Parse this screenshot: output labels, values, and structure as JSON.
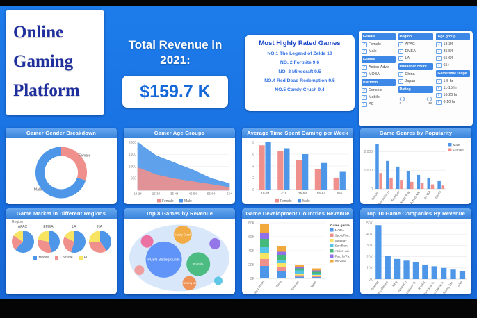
{
  "page": {
    "background": "#1b76e6",
    "card_header_color": "#3a84dc",
    "male_color": "#4e97e8",
    "female_color": "#f0908d"
  },
  "header": {
    "title_lines": [
      "Online",
      "Gaming",
      "Platform"
    ],
    "revenue_label": "Total Revenue in 2021:",
    "revenue_value": "$159.7 K",
    "rated": {
      "title": "Most Highly Rated Games",
      "items": [
        "NO.1 The Legend of Zelda 10",
        "NO. 2 Fortnite  9.6",
        "NO. 3 Minecraft 9.5",
        "NO.4 Red Dead Redemption 9.5",
        "NO.5 Candy Crush  9.4"
      ]
    }
  },
  "filters": {
    "columns": [
      {
        "sections": [
          {
            "title": "Gender",
            "items": [
              "Female",
              "Male"
            ]
          },
          {
            "title": "Games",
            "items": [
              "Action-Adve",
              "MOBA"
            ]
          },
          {
            "title": "Platform",
            "items": [
              "Console",
              "Mobile",
              "PC"
            ]
          }
        ]
      },
      {
        "sections": [
          {
            "title": "Region",
            "items": [
              "APAC",
              "EMEA",
              "LA"
            ]
          },
          {
            "title": "Publisher count",
            "items": [
              "China",
              "Japan"
            ]
          },
          {
            "title": "Rating",
            "slider": {
              "min": "0",
              "max": "10"
            }
          }
        ]
      },
      {
        "sections": [
          {
            "title": "Age group",
            "items": [
              "18-34",
              "35-54",
              "55-64",
              "65+"
            ]
          },
          {
            "title": "Game time range",
            "items": [
              "1-5 hr",
              "11-15 hr",
              "16-20 hr",
              "6-10 hr"
            ]
          }
        ]
      }
    ]
  },
  "chart_data": [
    {
      "id": "gender-breakdown",
      "type": "pie",
      "title": "Gamer Gender Breakdown",
      "labels": [
        "Female",
        "Male"
      ],
      "values": [
        30,
        70
      ],
      "colors": [
        "#f0908d",
        "#4e97e8"
      ],
      "donut": true
    },
    {
      "id": "age-groups",
      "type": "area",
      "title": "Gamer Age Groups",
      "categories": [
        "18-24",
        "25-34",
        "35-44",
        "45-54",
        "55-64",
        "65+"
      ],
      "series": [
        {
          "name": "Female",
          "color": "#f0908d",
          "values": [
            950,
            650,
            480,
            360,
            240,
            120
          ]
        },
        {
          "name": "Male",
          "color": "#4e97e8",
          "values": [
            2000,
            1450,
            1150,
            850,
            500,
            280
          ]
        }
      ],
      "ymax": 2000,
      "yticks": [
        500,
        1000,
        1500,
        2000
      ],
      "ytick_labels": [
        "500",
        "1000",
        "1500",
        "2000"
      ]
    },
    {
      "id": "time-spent",
      "type": "bar",
      "title": "Average Time Spent Gaming per Week",
      "categories": [
        "18-34",
        "<18",
        "35-54",
        "55-64",
        "65+"
      ],
      "series": [
        {
          "name": "Female",
          "color": "#f0908d",
          "values": [
            7.5,
            6.5,
            5,
            3.5,
            2
          ]
        },
        {
          "name": "Male",
          "color": "#4e97e8",
          "values": [
            8,
            7,
            6,
            4.5,
            3
          ]
        }
      ],
      "ymax": 8,
      "yticks": [
        0,
        2,
        4,
        6,
        8
      ],
      "ytick_labels": [
        "0",
        "2",
        "4",
        "6",
        "8"
      ]
    },
    {
      "id": "genres-popularity",
      "type": "bar",
      "title": "Game Genres by Popularity",
      "categories": [
        "Shooter",
        "Puzzle/Party",
        "Sandbox",
        "Battle Roy.",
        "Action-Adv.",
        "MOBA",
        "Sports"
      ],
      "series": [
        {
          "name": "Male",
          "color": "#4e97e8",
          "values": [
            2400,
            1500,
            1200,
            950,
            750,
            600,
            450
          ]
        },
        {
          "name": "Female",
          "color": "#f0908d",
          "values": [
            850,
            600,
            480,
            380,
            300,
            240,
            180
          ]
        }
      ],
      "ymax": 2500,
      "yticks": [
        0,
        1000,
        2000
      ],
      "ytick_labels": [
        "0",
        "1,000",
        "2,000"
      ],
      "rotate_labels": true,
      "legend_position": "right"
    },
    {
      "id": "regions-market",
      "type": "pie-multiples",
      "title": "Game Market in Different Regions",
      "group_label": "Region",
      "regions": [
        "APAC",
        "EMEA",
        "LA",
        "NA"
      ],
      "legend": [
        {
          "name": "Mobile",
          "color": "#4e97e8"
        },
        {
          "name": "Console",
          "color": "#f0908d"
        },
        {
          "name": "PC",
          "color": "#f7e463"
        }
      ],
      "values": [
        [
          62,
          22,
          16
        ],
        [
          46,
          32,
          22
        ],
        [
          55,
          27,
          18
        ],
        [
          40,
          34,
          26
        ]
      ]
    },
    {
      "id": "top-games",
      "type": "bubble",
      "title": "Top 8 Games by Revenue",
      "bubbles": [
        {
          "label": "PUBG Battlegrounds",
          "color": "#5b8ff9",
          "x": 36,
          "y": 54,
          "r": 26
        },
        {
          "label": "Fortnite",
          "color": "#45b97c",
          "x": 67,
          "y": 60,
          "r": 17
        },
        {
          "label": "Candy Crash",
          "color": "#f2a93b",
          "x": 53,
          "y": 21,
          "r": 13
        },
        {
          "label": "Among Us",
          "color": "#ef8d4e",
          "x": 59,
          "y": 85,
          "r": 10
        },
        {
          "label": "",
          "color": "#ec6a9e",
          "x": 21,
          "y": 30,
          "r": 9
        },
        {
          "label": "",
          "color": "#9070e8",
          "x": 82,
          "y": 33,
          "r": 8
        },
        {
          "label": "",
          "color": "#f09a9a",
          "x": 14,
          "y": 68,
          "r": 7
        },
        {
          "label": "",
          "color": "#57c4e5",
          "x": 85,
          "y": 82,
          "r": 6
        }
      ]
    },
    {
      "id": "dev-countries",
      "type": "stacked-bar",
      "title": "Game Development Countries Revenue",
      "categories": [
        "United States",
        "China",
        "Sweden",
        "Japan"
      ],
      "legend_title": "Game genre",
      "series": [
        {
          "name": "MOBA",
          "color": "#4e97e8",
          "values": [
            18000,
            11000,
            2500,
            2000
          ]
        },
        {
          "name": "Sport/Rac.",
          "color": "#f0908d",
          "values": [
            10000,
            6000,
            2000,
            1500
          ]
        },
        {
          "name": "Strategy",
          "color": "#f7e463",
          "values": [
            8000,
            5000,
            1500,
            1500
          ]
        },
        {
          "name": "Sandbox",
          "color": "#57c4e5",
          "values": [
            9000,
            5000,
            5500,
            1500
          ]
        },
        {
          "name": "Action-Ad.",
          "color": "#45b97c",
          "values": [
            12000,
            7000,
            3000,
            3000
          ]
        },
        {
          "name": "Puzzle/Pa.",
          "color": "#9070e8",
          "values": [
            8000,
            4500,
            2000,
            2000
          ]
        },
        {
          "name": "Shooter",
          "color": "#f2a93b",
          "values": [
            13000,
            7500,
            3500,
            3000
          ]
        }
      ],
      "ymax": 80000,
      "yticks": [
        0,
        20000,
        40000,
        60000,
        80000
      ],
      "ytick_labels": [
        "0K",
        "20K",
        "40K",
        "60K",
        "80K"
      ],
      "rotate_labels": true
    },
    {
      "id": "top-companies",
      "type": "bar",
      "title": "Top 10 Game Companies By Revenue",
      "categories": [
        "Tencent",
        "Epic Games",
        "King",
        "Nintendo",
        "Activision B.",
        "Roblox",
        "RockStar G.",
        "Xbox Game S.",
        "Mojang Stu.",
        "Valve"
      ],
      "series": [
        {
          "name": "Revenue",
          "color": "#4e97e8",
          "values": [
            48000,
            21000,
            18000,
            16500,
            15000,
            13000,
            11500,
            10000,
            8500,
            7000
          ]
        }
      ],
      "ymax": 50000,
      "yticks": [
        0,
        10000,
        20000,
        30000,
        40000,
        50000
      ],
      "ytick_labels": [
        "0K",
        "10K",
        "20K",
        "30K",
        "40K",
        "50K"
      ],
      "rotate_labels": true
    }
  ]
}
